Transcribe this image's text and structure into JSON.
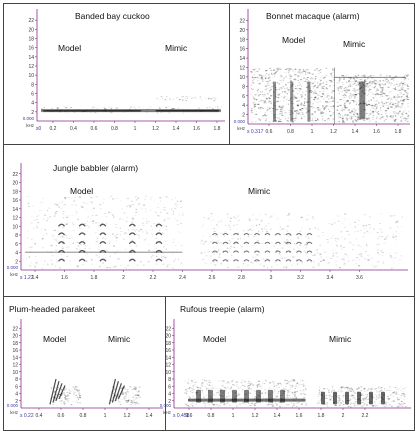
{
  "panels": [
    {
      "title": "Banded bay cuckoo",
      "model_label": "Model",
      "mimic_label": "Mimic",
      "y_unit": "kHz",
      "y_origin": "0.000",
      "y_ticks": [
        "2",
        "4",
        "6",
        "8",
        "10",
        "12",
        "14",
        "16",
        "18",
        "20",
        "22"
      ],
      "x_origin": "s0",
      "x_ticks": [
        "0.2",
        "0.4",
        "0.6",
        "0.8",
        "1",
        "1.2",
        "1.4",
        "1.6",
        "1.8"
      ]
    },
    {
      "title": "Bonnet macaque (alarm)",
      "model_label": "Model",
      "mimic_label": "Mimic",
      "y_unit": "kHz",
      "y_origin": "0.000",
      "y_ticks": [
        "2",
        "4",
        "6",
        "8",
        "10",
        "12",
        "14",
        "16",
        "18",
        "20",
        "22"
      ],
      "x_origin": "s 0.317",
      "x_ticks": [
        "0.6",
        "0.8",
        "1",
        "1.2",
        "1.4",
        "1.6",
        "1.8"
      ]
    },
    {
      "title": "Jungle babbler (alarm)",
      "model_label": "Model",
      "mimic_label": "Mimic",
      "y_unit": "kHz",
      "y_origin": "0.000",
      "y_ticks": [
        "2",
        "4",
        "6",
        "8",
        "10",
        "12",
        "14",
        "16",
        "18",
        "20",
        "22"
      ],
      "x_origin": "s 1.22",
      "x_ticks": [
        "1.4",
        "1.6",
        "1.8",
        "2",
        "2.2",
        "2.4",
        "2.6",
        "2.8",
        "3",
        "3.2",
        "3.4",
        "3.6"
      ]
    },
    {
      "title": "Plum-headed parakeet",
      "model_label": "Model",
      "mimic_label": "Mimic",
      "y_unit": "kHz",
      "y_origin": "0.000",
      "y_ticks": [
        "2",
        "4",
        "6",
        "8",
        "10",
        "12",
        "14",
        "16",
        "18",
        "20",
        "22"
      ],
      "x_origin": "s 0.22",
      "x_ticks": [
        "0.4",
        "0.6",
        "0.8",
        "1",
        "1.2",
        "1.4"
      ]
    },
    {
      "title": "Rufous treepie (alarm)",
      "model_label": "Model",
      "mimic_label": "Mimic",
      "y_unit": "kHz",
      "y_origin": "0.000",
      "y_ticks": [
        "2",
        "4",
        "6",
        "8",
        "10",
        "12",
        "14",
        "16",
        "18",
        "20",
        "22"
      ],
      "x_origin": "s 0.458",
      "x_ticks": [
        "0.6",
        "0.8",
        "1",
        "1.2",
        "1.4",
        "1.6",
        "1.8",
        "2",
        "2.2"
      ]
    }
  ],
  "colors": {
    "axis": "#8a2a8a",
    "frame": "#444444",
    "ink": "#111111"
  }
}
